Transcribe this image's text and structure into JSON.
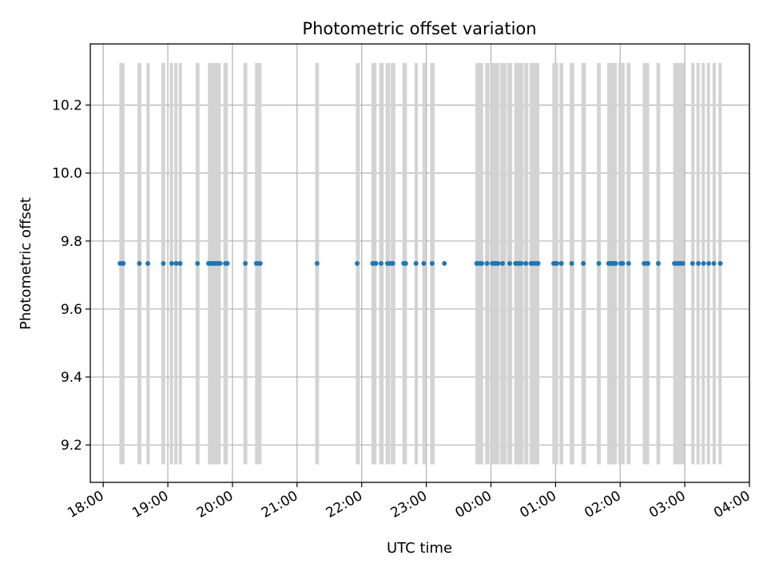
{
  "chart_data": {
    "type": "scatter",
    "title": "Photometric offset variation",
    "xlabel": "UTC time",
    "ylabel": "Photometric offset",
    "grid": true,
    "x_axis": {
      "unit": "hours",
      "range": [
        17.8,
        28.0
      ],
      "ticks": [
        {
          "value": 18,
          "label": "18:00"
        },
        {
          "value": 19,
          "label": "19:00"
        },
        {
          "value": 20,
          "label": "20:00"
        },
        {
          "value": 21,
          "label": "21:00"
        },
        {
          "value": 22,
          "label": "22:00"
        },
        {
          "value": 23,
          "label": "23:00"
        },
        {
          "value": 24,
          "label": "00:00"
        },
        {
          "value": 25,
          "label": "01:00"
        },
        {
          "value": 26,
          "label": "02:00"
        },
        {
          "value": 27,
          "label": "03:00"
        },
        {
          "value": 28,
          "label": "04:00"
        }
      ]
    },
    "y_axis": {
      "range": [
        9.09,
        10.38
      ],
      "ticks": [
        {
          "value": 9.2,
          "label": "9.2"
        },
        {
          "value": 9.4,
          "label": "9.4"
        },
        {
          "value": 9.6,
          "label": "9.6"
        },
        {
          "value": 9.8,
          "label": "9.8"
        },
        {
          "value": 10.0,
          "label": "10.0"
        },
        {
          "value": 10.2,
          "label": "10.2"
        }
      ]
    },
    "bands": {
      "color": "#d3d3d3",
      "y_range": [
        9.143,
        10.324
      ],
      "intervals": [
        [
          18.25,
          18.33
        ],
        [
          18.53,
          18.59
        ],
        [
          18.67,
          18.72
        ],
        [
          18.9,
          18.96
        ],
        [
          19.03,
          19.08
        ],
        [
          19.1,
          19.15
        ],
        [
          19.17,
          19.22
        ],
        [
          19.43,
          19.49
        ],
        [
          19.62,
          19.82
        ],
        [
          19.86,
          19.93
        ],
        [
          20.17,
          20.23
        ],
        [
          20.35,
          20.45
        ],
        [
          21.28,
          21.34
        ],
        [
          21.91,
          21.97
        ],
        [
          22.15,
          22.23
        ],
        [
          22.27,
          22.34
        ],
        [
          22.37,
          22.44
        ],
        [
          22.45,
          22.52
        ],
        [
          22.63,
          22.7
        ],
        [
          22.82,
          22.87
        ],
        [
          22.94,
          22.99
        ],
        [
          23.06,
          23.13
        ],
        [
          23.76,
          23.88
        ],
        [
          23.91,
          23.98
        ],
        [
          24.0,
          24.13
        ],
        [
          24.14,
          24.24
        ],
        [
          24.25,
          24.33
        ],
        [
          24.36,
          24.5
        ],
        [
          24.51,
          24.58
        ],
        [
          24.6,
          24.75
        ],
        [
          24.95,
          25.04
        ],
        [
          25.06,
          25.12
        ],
        [
          25.22,
          25.29
        ],
        [
          25.4,
          25.47
        ],
        [
          25.64,
          25.7
        ],
        [
          25.8,
          25.95
        ],
        [
          25.97,
          26.07
        ],
        [
          26.1,
          26.16
        ],
        [
          26.35,
          26.45
        ],
        [
          26.56,
          26.62
        ],
        [
          26.82,
          26.99
        ],
        [
          27.1,
          27.15
        ],
        [
          27.18,
          27.23
        ],
        [
          27.26,
          27.31
        ],
        [
          27.34,
          27.39
        ],
        [
          27.43,
          27.48
        ],
        [
          27.52,
          27.57
        ]
      ]
    },
    "series": [
      {
        "color": "#1f77b4",
        "points": [
          [
            18.26,
            9.734
          ],
          [
            18.29,
            9.734
          ],
          [
            18.31,
            9.734
          ],
          [
            18.56,
            9.734
          ],
          [
            18.69,
            9.734
          ],
          [
            18.93,
            9.734
          ],
          [
            19.06,
            9.734
          ],
          [
            19.13,
            9.734
          ],
          [
            19.19,
            9.734
          ],
          [
            19.46,
            9.734
          ],
          [
            19.63,
            9.734
          ],
          [
            19.66,
            9.734
          ],
          [
            19.69,
            9.734
          ],
          [
            19.72,
            9.734
          ],
          [
            19.75,
            9.734
          ],
          [
            19.78,
            9.734
          ],
          [
            19.81,
            9.734
          ],
          [
            19.89,
            9.734
          ],
          [
            19.92,
            9.734
          ],
          [
            20.2,
            9.734
          ],
          [
            20.37,
            9.734
          ],
          [
            20.4,
            9.734
          ],
          [
            20.43,
            9.734
          ],
          [
            21.31,
            9.734
          ],
          [
            21.93,
            9.734
          ],
          [
            22.17,
            9.734
          ],
          [
            22.2,
            9.734
          ],
          [
            22.22,
            9.734
          ],
          [
            22.3,
            9.734
          ],
          [
            22.4,
            9.734
          ],
          [
            22.44,
            9.734
          ],
          [
            22.48,
            9.734
          ],
          [
            22.65,
            9.734
          ],
          [
            22.68,
            9.734
          ],
          [
            22.84,
            9.734
          ],
          [
            22.96,
            9.734
          ],
          [
            23.09,
            9.734
          ],
          [
            23.28,
            9.734
          ],
          [
            23.78,
            9.734
          ],
          [
            23.81,
            9.734
          ],
          [
            23.84,
            9.734
          ],
          [
            23.86,
            9.734
          ],
          [
            23.94,
            9.734
          ],
          [
            24.02,
            9.734
          ],
          [
            24.05,
            9.734
          ],
          [
            24.08,
            9.734
          ],
          [
            24.11,
            9.734
          ],
          [
            24.18,
            9.734
          ],
          [
            24.29,
            9.734
          ],
          [
            24.38,
            9.734
          ],
          [
            24.41,
            9.734
          ],
          [
            24.44,
            9.734
          ],
          [
            24.47,
            9.734
          ],
          [
            24.54,
            9.734
          ],
          [
            24.62,
            9.734
          ],
          [
            24.65,
            9.734
          ],
          [
            24.68,
            9.734
          ],
          [
            24.71,
            9.734
          ],
          [
            24.73,
            9.734
          ],
          [
            24.97,
            9.734
          ],
          [
            25.0,
            9.734
          ],
          [
            25.02,
            9.734
          ],
          [
            25.09,
            9.734
          ],
          [
            25.25,
            9.734
          ],
          [
            25.43,
            9.734
          ],
          [
            25.67,
            9.734
          ],
          [
            25.82,
            9.734
          ],
          [
            25.85,
            9.734
          ],
          [
            25.88,
            9.734
          ],
          [
            25.91,
            9.734
          ],
          [
            25.93,
            9.734
          ],
          [
            26.01,
            9.734
          ],
          [
            26.04,
            9.734
          ],
          [
            26.13,
            9.734
          ],
          [
            26.37,
            9.734
          ],
          [
            26.4,
            9.734
          ],
          [
            26.43,
            9.734
          ],
          [
            26.59,
            9.734
          ],
          [
            26.84,
            9.734
          ],
          [
            26.87,
            9.734
          ],
          [
            26.9,
            9.734
          ],
          [
            26.93,
            9.734
          ],
          [
            26.97,
            9.734
          ],
          [
            27.12,
            9.734
          ],
          [
            27.21,
            9.734
          ],
          [
            27.29,
            9.734
          ],
          [
            27.37,
            9.734
          ],
          [
            27.45,
            9.734
          ],
          [
            27.55,
            9.734
          ]
        ]
      }
    ]
  }
}
